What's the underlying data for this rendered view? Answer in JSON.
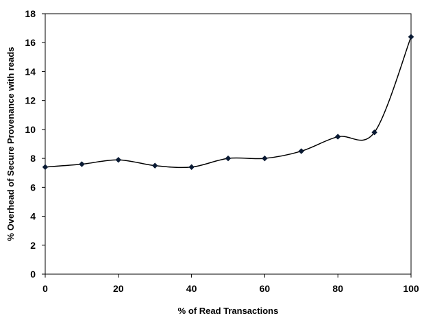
{
  "chart_data": {
    "type": "line",
    "title": "",
    "xlabel": "% of Read Transactions",
    "ylabel": "% Overhead of Secure Provenance  with reads",
    "xlim": [
      0,
      100
    ],
    "ylim": [
      0,
      18
    ],
    "xticks": [
      0,
      20,
      40,
      60,
      80,
      100
    ],
    "yticks": [
      0,
      2,
      4,
      6,
      8,
      10,
      12,
      14,
      16,
      18
    ],
    "grid": false,
    "legend": "none",
    "smooth": true,
    "series": [
      {
        "x": [
          0,
          10,
          20,
          30,
          40,
          50,
          60,
          70,
          80,
          90,
          100
        ],
        "y": [
          7.4,
          7.6,
          7.9,
          7.5,
          7.4,
          8.0,
          8.0,
          8.5,
          9.5,
          9.8,
          16.4
        ],
        "marker": "diamond",
        "color": "#000000",
        "marker_color": "#0a1a33"
      }
    ]
  }
}
